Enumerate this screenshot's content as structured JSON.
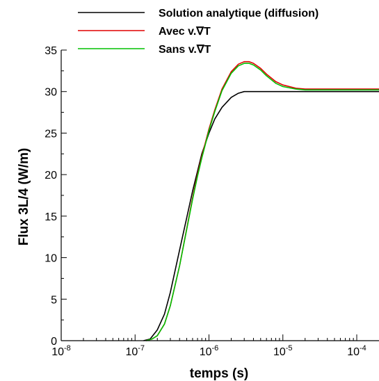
{
  "chart_data": {
    "type": "line",
    "title": "",
    "xlabel": "temps (s)",
    "ylabel": "Flux 3L/4 (W/m)",
    "xscale": "log",
    "xlim": [
      1e-08,
      0.0002
    ],
    "ylim": [
      0,
      35
    ],
    "grid": false,
    "legend_placement": "top",
    "x_ticks": [
      {
        "value": 1e-08,
        "base": "10",
        "exp": "-8"
      },
      {
        "value": 1e-07,
        "base": "10",
        "exp": "-7"
      },
      {
        "value": 1e-06,
        "base": "10",
        "exp": "-6"
      },
      {
        "value": 1e-05,
        "base": "10",
        "exp": "-5"
      },
      {
        "value": 0.0001,
        "base": "10",
        "exp": "-4"
      }
    ],
    "y_ticks": [
      {
        "value": 0,
        "label": "0"
      },
      {
        "value": 5,
        "label": "5"
      },
      {
        "value": 10,
        "label": "10"
      },
      {
        "value": 15,
        "label": "15"
      },
      {
        "value": 20,
        "label": "20"
      },
      {
        "value": 25,
        "label": "25"
      },
      {
        "value": 30,
        "label": "30"
      },
      {
        "value": 35,
        "label": "35"
      }
    ],
    "series": [
      {
        "name": "Solution analytique (diffusion)",
        "color": "#000000",
        "x": [
          1.3e-07,
          1.6e-07,
          2e-07,
          2.5e-07,
          3e-07,
          4e-07,
          5e-07,
          6e-07,
          7e-07,
          8e-07,
          1e-06,
          1.2e-06,
          1.5e-06,
          2e-06,
          2.5e-06,
          3e-06,
          4e-06,
          6e-06,
          1e-05,
          3e-05,
          0.0001,
          0.0002
        ],
        "y": [
          0,
          0.2,
          1.3,
          3.2,
          5.8,
          10.9,
          14.8,
          18.0,
          20.4,
          22.5,
          25.0,
          26.7,
          28.1,
          29.3,
          29.8,
          30.0,
          30.0,
          30.0,
          30.0,
          30.0,
          30.0,
          30.0
        ]
      },
      {
        "name": "Avec v.∇T",
        "color": "#e00000",
        "x": [
          1.4e-07,
          1.7e-07,
          2e-07,
          2.5e-07,
          3e-07,
          4e-07,
          5e-07,
          6e-07,
          7e-07,
          8e-07,
          1e-06,
          1.2e-06,
          1.5e-06,
          2e-06,
          2.5e-06,
          3e-06,
          3.5e-06,
          4e-06,
          5e-06,
          6e-06,
          8e-06,
          1e-05,
          1.5e-05,
          2e-05,
          3e-05,
          5e-05,
          0.0001,
          0.0002
        ],
        "y": [
          0,
          0.2,
          0.6,
          2.0,
          4.2,
          9.0,
          13.5,
          17.2,
          20.0,
          22.2,
          25.5,
          27.8,
          30.3,
          32.4,
          33.3,
          33.6,
          33.6,
          33.4,
          32.8,
          32.1,
          31.2,
          30.8,
          30.4,
          30.3,
          30.3,
          30.3,
          30.3,
          30.3
        ]
      },
      {
        "name": "Sans v.∇T",
        "color": "#00c000",
        "x": [
          1.4e-07,
          1.7e-07,
          2e-07,
          2.5e-07,
          3e-07,
          4e-07,
          5e-07,
          6e-07,
          7e-07,
          8e-07,
          1e-06,
          1.2e-06,
          1.5e-06,
          2e-06,
          2.5e-06,
          3e-06,
          3.5e-06,
          4e-06,
          5e-06,
          6e-06,
          8e-06,
          1e-05,
          1.5e-05,
          2e-05,
          3e-05,
          5e-05,
          0.0001,
          0.0002
        ],
        "y": [
          0,
          0.2,
          0.6,
          2.0,
          4.2,
          9.0,
          13.4,
          17.0,
          19.8,
          22.0,
          25.3,
          27.6,
          30.1,
          32.2,
          33.1,
          33.4,
          33.4,
          33.2,
          32.6,
          31.9,
          31.0,
          30.6,
          30.3,
          30.2,
          30.2,
          30.2,
          30.2,
          30.2
        ]
      }
    ]
  }
}
